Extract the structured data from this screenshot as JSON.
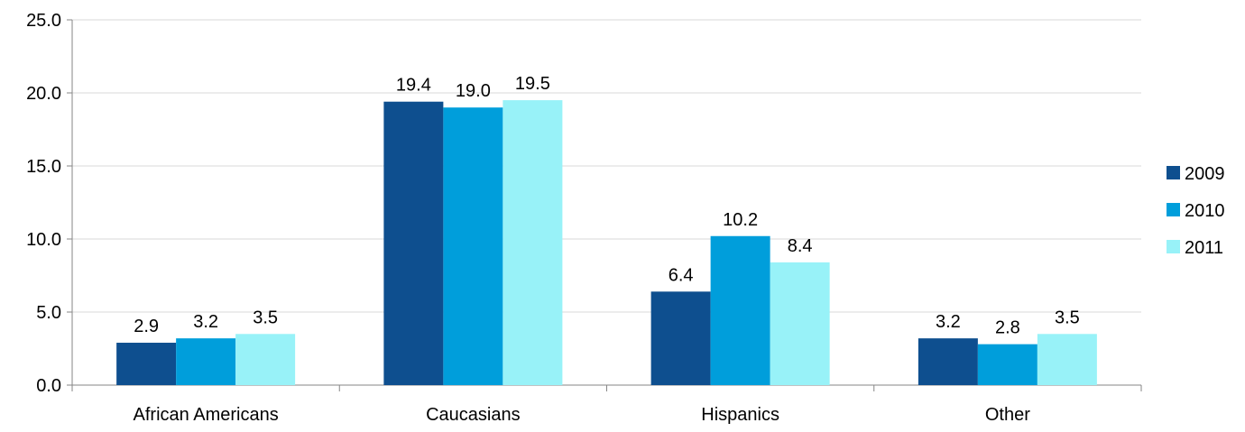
{
  "chart_data": {
    "type": "bar",
    "categories": [
      "African Americans",
      "Caucasians",
      "Hispanics",
      "Other"
    ],
    "series": [
      {
        "name": "2009",
        "color": "#0e4f8f",
        "values": [
          2.9,
          19.4,
          6.4,
          3.2
        ]
      },
      {
        "name": "2010",
        "color": "#009edb",
        "values": [
          3.2,
          19.0,
          10.2,
          2.8
        ]
      },
      {
        "name": "2011",
        "color": "#98f2f8",
        "values": [
          3.5,
          19.5,
          8.4,
          3.5
        ]
      }
    ],
    "ylim": [
      0,
      25
    ],
    "yticks": [
      "0.0",
      "5.0",
      "10.0",
      "15.0",
      "20.0",
      "25.0"
    ],
    "data_labels": [
      [
        "2.9",
        "19.4",
        "6.4",
        "3.2"
      ],
      [
        "3.2",
        "19.0",
        "10.2",
        "2.8"
      ],
      [
        "3.5",
        "19.5",
        "8.4",
        "3.5"
      ]
    ],
    "grid": true,
    "legend_position": "right",
    "title": "",
    "xlabel": "",
    "ylabel": ""
  }
}
